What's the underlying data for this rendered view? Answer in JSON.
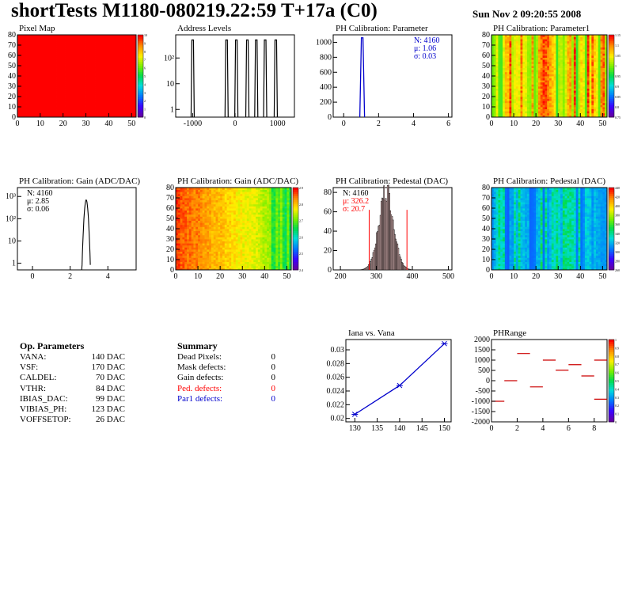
{
  "header": {
    "title": "shortTests M1180-080219.22:59 T+17a (C0)",
    "date": "Sun Nov  2 09:20:55 2008"
  },
  "colors": {
    "red": "#ff0000",
    "blue": "#0000cc",
    "axis": "#000000"
  },
  "chart_data": [
    {
      "id": "pixel-map",
      "type": "heatmap",
      "title": "Pixel Map",
      "xticks": [
        "0",
        "10",
        "20",
        "30",
        "40",
        "50"
      ],
      "yticks": [
        "0",
        "10",
        "20",
        "30",
        "40",
        "50",
        "60",
        "70",
        "80"
      ],
      "xlim": [
        0,
        52
      ],
      "ylim": [
        0,
        80
      ],
      "zticks": [
        "0",
        "1",
        "2",
        "3",
        "4",
        "5",
        "6",
        "7",
        "8",
        "9",
        "10"
      ],
      "pattern": "uniform-max"
    },
    {
      "id": "address-levels",
      "type": "bar",
      "title": "Address Levels",
      "xticks": [
        "-1000",
        "0",
        "1000"
      ],
      "yticks": [
        "1",
        "10",
        "10²"
      ],
      "xlim": [
        -1400,
        1400
      ],
      "log_y": true,
      "peaks_x": [
        -1000,
        -200,
        30,
        290,
        500,
        710,
        960
      ],
      "peaks_y": [
        500,
        500,
        500,
        500,
        500,
        500,
        500
      ]
    },
    {
      "id": "ph-param",
      "type": "bar",
      "title": "PH Calibration: Parameter",
      "xticks": [
        "0",
        "2",
        "4",
        "6"
      ],
      "yticks": [
        "0",
        "200",
        "400",
        "600",
        "800",
        "1000"
      ],
      "xlim": [
        -0.6,
        6.2
      ],
      "ylim": [
        0,
        1100
      ],
      "stats": [
        "N: 4160",
        "μ: 1.06",
        "σ: 0.03"
      ],
      "mean": 1.06,
      "sigma": 0.03,
      "peak": 1060
    },
    {
      "id": "ph-param1",
      "type": "heatmap",
      "title": "PH Calibration: Parameter1",
      "xticks": [
        "0",
        "10",
        "20",
        "30",
        "40",
        "50"
      ],
      "yticks": [
        "0",
        "10",
        "20",
        "30",
        "40",
        "50",
        "60",
        "70",
        "80"
      ],
      "xlim": [
        0,
        52
      ],
      "ylim": [
        0,
        80
      ],
      "zticks": [
        "0.75",
        "0.8",
        "0.85",
        "0.9",
        "0.95",
        "1",
        "1.05",
        "1.1",
        "1.15"
      ],
      "pattern": "column-stripes-warm"
    },
    {
      "id": "gain-hist",
      "type": "bar",
      "title": "PH Calibration: Gain (ADC/DAC)",
      "xticks": [
        "0",
        "2",
        "4"
      ],
      "yticks": [
        "1",
        "10",
        "10²",
        "10³"
      ],
      "xlim": [
        -0.8,
        5.5
      ],
      "log_y": true,
      "stats": [
        "N: 4160",
        "μ: 2.85",
        "σ: 0.06"
      ],
      "mean": 2.85,
      "sigma": 0.06,
      "peak": 700
    },
    {
      "id": "gain-map",
      "type": "heatmap",
      "title": "PH Calibration: Gain (ADC/DAC)",
      "xticks": [
        "0",
        "10",
        "20",
        "30",
        "40",
        "50"
      ],
      "yticks": [
        "0",
        "10",
        "20",
        "30",
        "40",
        "50",
        "60",
        "70",
        "80"
      ],
      "xlim": [
        0,
        52
      ],
      "ylim": [
        0,
        80
      ],
      "zticks": [
        "2.4",
        "2.5",
        "2.6",
        "2.7",
        "2.8",
        "2.9"
      ],
      "pattern": "left-to-right-red-to-yellow"
    },
    {
      "id": "pedestal-hist",
      "type": "bar",
      "title": "PH Calibration: Pedestal (DAC)",
      "xticks": [
        "200",
        "300",
        "400",
        "500"
      ],
      "yticks": [
        "0",
        "20",
        "40",
        "60",
        "80"
      ],
      "xlim": [
        180,
        510
      ],
      "ylim": [
        0,
        85
      ],
      "stats": [
        "N: 4160",
        "μ: 326.2",
        "σ: 20.7"
      ],
      "mean": 326.2,
      "sigma": 20.7,
      "peak": 80,
      "cut_lines": [
        280,
        385
      ]
    },
    {
      "id": "pedestal-map",
      "type": "heatmap",
      "title": "PH Calibration: Pedestal (DAC)",
      "xticks": [
        "0",
        "10",
        "20",
        "30",
        "40",
        "50"
      ],
      "yticks": [
        "0",
        "10",
        "20",
        "30",
        "40",
        "50",
        "60",
        "70",
        "80"
      ],
      "xlim": [
        0,
        52
      ],
      "ylim": [
        0,
        80
      ],
      "zticks": [
        "260",
        "280",
        "300",
        "320",
        "340",
        "360",
        "380",
        "400",
        "420",
        "440"
      ],
      "pattern": "blue-green-stripes"
    },
    {
      "id": "iana-vana",
      "type": "line",
      "title": "Iana vs. Vana",
      "xticks": [
        "130",
        "135",
        "140",
        "145",
        "150"
      ],
      "yticks": [
        "0.02",
        "0.022",
        "0.024",
        "0.026",
        "0.028",
        "0.03"
      ],
      "xlim": [
        128,
        151.5
      ],
      "ylim": [
        0.0195,
        0.0315
      ],
      "x": [
        130,
        140,
        150
      ],
      "y": [
        0.0206,
        0.0248,
        0.0309
      ]
    },
    {
      "id": "phrange",
      "type": "scatter",
      "title": "PHRange",
      "xticks": [
        "0",
        "2",
        "4",
        "6",
        "8"
      ],
      "yticks": [
        "-2000",
        "-1500",
        "-1000",
        "-500",
        "0",
        "500",
        "1000",
        "1500",
        "2000"
      ],
      "xlim": [
        0,
        9
      ],
      "ylim": [
        -2000,
        2000
      ],
      "zticks": [
        "0",
        "0.1",
        "0.2",
        "0.3",
        "0.4",
        "0.5",
        "0.6",
        "0.7",
        "0.8",
        "0.9",
        "1"
      ],
      "x": [
        0,
        1,
        2,
        3,
        4,
        5,
        6,
        7,
        8
      ],
      "y": [
        -1000,
        -1,
        1320,
        -300,
        1000,
        510,
        780,
        230,
        1000
      ],
      "y2": [
        null,
        null,
        null,
        null,
        null,
        null,
        null,
        null,
        -900
      ]
    }
  ],
  "op_params": {
    "heading": "Op. Parameters",
    "rows": [
      {
        "name": "VANA:",
        "value": "140 DAC"
      },
      {
        "name": "VSF:",
        "value": "170 DAC"
      },
      {
        "name": "CALDEL:",
        "value": "70 DAC"
      },
      {
        "name": "VTHR:",
        "value": "84 DAC"
      },
      {
        "name": "IBIAS_DAC:",
        "value": "99 DAC"
      },
      {
        "name": "VIBIAS_PH:",
        "value": "123 DAC"
      },
      {
        "name": "VOFFSETOP:",
        "value": "26 DAC"
      }
    ]
  },
  "summary": {
    "heading": "Summary",
    "rows": [
      {
        "name": "Dead Pixels:",
        "value": "0",
        "color": "#000000"
      },
      {
        "name": "Mask defects:",
        "value": "0",
        "color": "#000000"
      },
      {
        "name": "Gain defects:",
        "value": "0",
        "color": "#000000"
      },
      {
        "name": "Ped. defects:",
        "value": "0",
        "color": "#ff0000"
      },
      {
        "name": "Par1 defects:",
        "value": "0",
        "color": "#0000cc"
      }
    ]
  }
}
